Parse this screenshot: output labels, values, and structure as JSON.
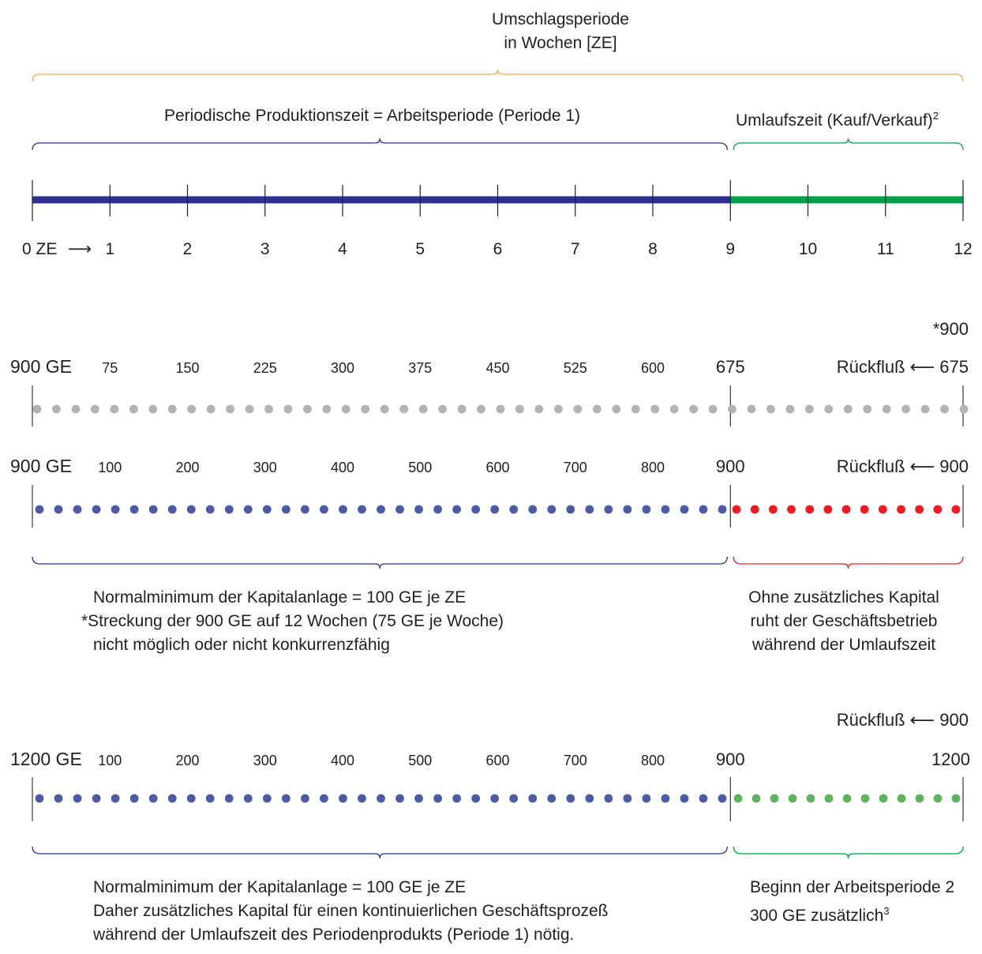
{
  "header": {
    "turnover_line1": "Umschlagsperiode",
    "turnover_line2": "in Wochen [ZE]",
    "production_label": "Periodische Produktionszeit = Arbeitsperiode (Periode 1)",
    "circulation_label": "Umlaufszeit (Kauf/Verkauf)",
    "circulation_footnote": "2"
  },
  "timeline": {
    "start_label": "0 ZE",
    "arrow": "⟶",
    "ticks": [
      "1",
      "2",
      "3",
      "4",
      "5",
      "6",
      "7",
      "8",
      "9",
      "10",
      "11",
      "12"
    ],
    "production_weeks": 9,
    "total_weeks": 12,
    "colors": {
      "production": "#2e3192",
      "circulation": "#00a14b"
    }
  },
  "row1": {
    "asterisk_label": "*900",
    "capital_label": "900 GE",
    "values": [
      "75",
      "150",
      "225",
      "300",
      "375",
      "450",
      "525",
      "600",
      "675"
    ],
    "return_label": "Rückfluß ⟵ 675",
    "dot_color": "#b3b3b3"
  },
  "row2": {
    "capital_label": "900 GE",
    "values": [
      "100",
      "200",
      "300",
      "400",
      "500",
      "600",
      "700",
      "800",
      "900"
    ],
    "return_label": "Rückfluß ⟵ 900",
    "dot_color_production": "#4d5aa8",
    "dot_color_circulation": "#ed1c24"
  },
  "note1": {
    "left_lines": [
      "Normalminimum der Kapitalanlage = 100 GE je ZE",
      "*Streckung der 900 GE auf 12 Wochen (75 GE je Woche)",
      "nicht möglich oder nicht konkurrenzfähig"
    ],
    "right_lines": [
      "Ohne zusätzliches Kapital",
      "ruht der Geschäftsbetrieb",
      "während der Umlaufszeit"
    ]
  },
  "row3": {
    "return_label": "Rückfluß ⟵ 900",
    "capital_label": "1200 GE",
    "values": [
      "100",
      "200",
      "300",
      "400",
      "500",
      "600",
      "700",
      "800",
      "900"
    ],
    "end_label": "1200",
    "dot_color_production": "#4d5aa8",
    "dot_color_circulation": "#5fb35c"
  },
  "note2": {
    "left_lines": [
      "Normalminimum der Kapitalanlage = 100 GE je ZE",
      "Daher zusätzliches Kapital für einen kontinuierlichen Geschäftsprozeß",
      "während der Umlaufszeit des Periodenprodukts (Periode 1) nötig."
    ],
    "right_line1": "Beginn der Arbeitsperiode 2",
    "right_line2": "300 GE zusätzlich",
    "right_footnote": "3"
  },
  "brace_colors": {
    "turnover": "#f7a84a",
    "production": "#2e3192",
    "circulation": "#00a14b",
    "row2_circulation": "#ed1c24"
  }
}
